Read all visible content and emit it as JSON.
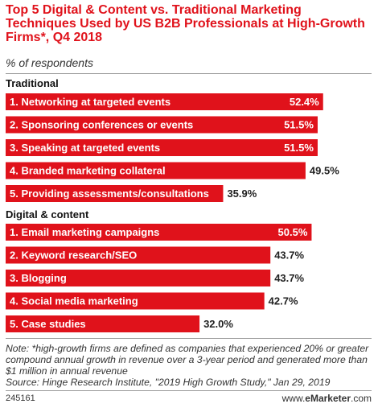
{
  "chart_data": {
    "type": "bar",
    "orientation": "horizontal",
    "title": "Top 5 Digital & Content vs. Traditional Marketing Techniques Used by US B2B Professionals at High-Growth Firms*, Q4 2018",
    "subtitle": "% of respondents",
    "xlim": [
      0,
      60
    ],
    "bar_color": "#e0121b",
    "groups": [
      {
        "name": "Traditional",
        "categories": [
          "1. Networking at targeted events",
          "2. Sponsoring conferences or events",
          "3. Speaking at targeted events",
          "4. Branded marketing collateral",
          "5. Providing assessments/consultations"
        ],
        "values": [
          52.4,
          51.5,
          51.5,
          49.5,
          35.9
        ],
        "value_labels": [
          "52.4%",
          "51.5%",
          "51.5%",
          "49.5%",
          "35.9%"
        ]
      },
      {
        "name": "Digital & content",
        "categories": [
          "1. Email marketing campaigns",
          "2. Keyword research/SEO",
          "3. Blogging",
          "4. Social media marketing",
          "5. Case studies"
        ],
        "values": [
          50.5,
          43.7,
          43.7,
          42.7,
          32.0
        ],
        "value_labels": [
          "50.5%",
          "43.7%",
          "43.7%",
          "42.7%",
          "32.0%"
        ]
      }
    ]
  },
  "footnote": {
    "note": "Note: *high-growth firms are defined as companies that experienced 20% or greater compound annual growth in revenue over a 3-year period and generated more than $1 million in annual revenue",
    "source": "Source: Hinge Research Institute, \"2019 High Growth Study,\" Jan 29, 2019"
  },
  "chart_id": "245161",
  "brand": {
    "prefix": "www.",
    "name": "eMarketer",
    "suffix": ".com"
  }
}
